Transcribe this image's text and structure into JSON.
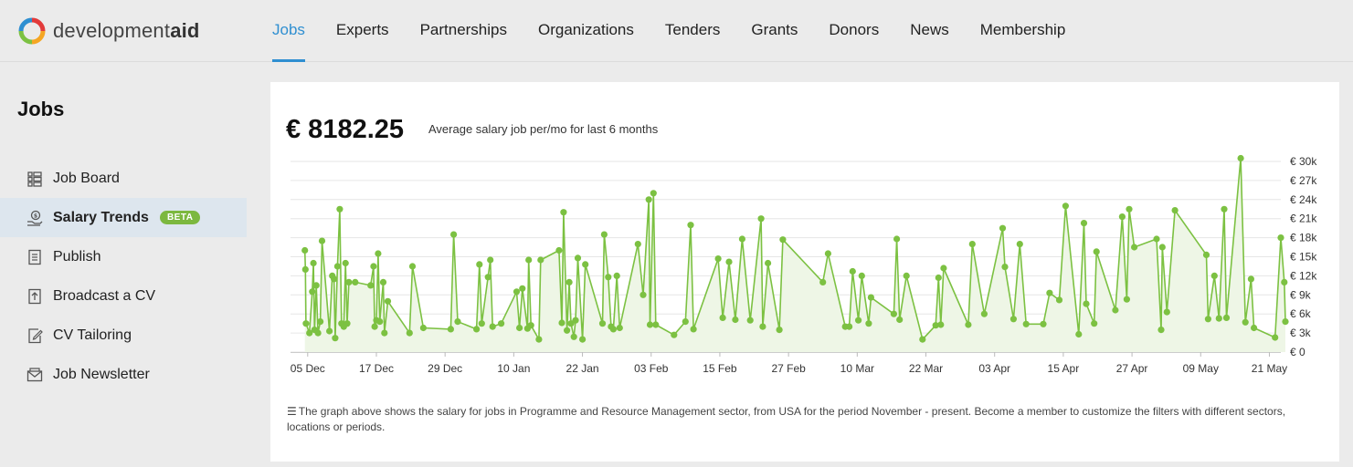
{
  "header": {
    "logo_word_light": "development",
    "logo_word_bold": "aid",
    "nav": [
      {
        "label": "Jobs",
        "active": true
      },
      {
        "label": "Experts",
        "active": false
      },
      {
        "label": "Partnerships",
        "active": false
      },
      {
        "label": "Organizations",
        "active": false
      },
      {
        "label": "Tenders",
        "active": false
      },
      {
        "label": "Grants",
        "active": false
      },
      {
        "label": "Donors",
        "active": false
      },
      {
        "label": "News",
        "active": false
      },
      {
        "label": "Membership",
        "active": false
      }
    ],
    "accent_color": "#2f8fd1"
  },
  "sidebar": {
    "title": "Jobs",
    "items": [
      {
        "label": "Job Board",
        "icon": "list-grid-icon",
        "active": false
      },
      {
        "label": "Salary Trends",
        "icon": "money-hand-icon",
        "active": true,
        "badge": "BETA"
      },
      {
        "label": "Publish",
        "icon": "document-icon",
        "active": false
      },
      {
        "label": "Broadcast a CV",
        "icon": "upload-document-icon",
        "active": false
      },
      {
        "label": "CV Tailoring",
        "icon": "edit-document-icon",
        "active": false
      },
      {
        "label": "Job Newsletter",
        "icon": "envelope-icon",
        "active": false
      }
    ]
  },
  "main": {
    "salary_value": "€ 8182.25",
    "salary_caption": "Average salary job per/mo for last 6 months",
    "note": "The graph above shows the salary for jobs in Programme and Resource Management sector, from USA for the period November - present. Become a member to customize the filters with different sectors, locations or periods."
  },
  "chart_data": {
    "type": "line",
    "line_color": "#7cc142",
    "area_fill": "#eef6e6",
    "grid": true,
    "ylim": [
      0,
      30000
    ],
    "y_ticks": [
      {
        "value": 0,
        "label": "€ 0"
      },
      {
        "value": 3000,
        "label": "€ 3k"
      },
      {
        "value": 6000,
        "label": "€ 6k"
      },
      {
        "value": 9000,
        "label": "€ 9k"
      },
      {
        "value": 12000,
        "label": "€ 12k"
      },
      {
        "value": 15000,
        "label": "€ 15k"
      },
      {
        "value": 18000,
        "label": "€ 18k"
      },
      {
        "value": 21000,
        "label": "€ 21k"
      },
      {
        "value": 24000,
        "label": "€ 24k"
      },
      {
        "value": 27000,
        "label": "€ 27k"
      },
      {
        "value": 30000,
        "label": "€ 30k"
      }
    ],
    "x_range": [
      0,
      173
    ],
    "x_ticks": [
      {
        "day": 3,
        "label": "05 Dec"
      },
      {
        "day": 15,
        "label": "17 Dec"
      },
      {
        "day": 27,
        "label": "29 Dec"
      },
      {
        "day": 39,
        "label": "10 Jan"
      },
      {
        "day": 51,
        "label": "22 Jan"
      },
      {
        "day": 63,
        "label": "03 Feb"
      },
      {
        "day": 75,
        "label": "15 Feb"
      },
      {
        "day": 87,
        "label": "27 Feb"
      },
      {
        "day": 99,
        "label": "10 Mar"
      },
      {
        "day": 111,
        "label": "22 Mar"
      },
      {
        "day": 123,
        "label": "03 Apr"
      },
      {
        "day": 135,
        "label": "15 Apr"
      },
      {
        "day": 147,
        "label": "27 Apr"
      },
      {
        "day": 159,
        "label": "09 May"
      },
      {
        "day": 171,
        "label": "21 May"
      }
    ],
    "points": [
      [
        2.5,
        16000
      ],
      [
        2.6,
        13000
      ],
      [
        2.7,
        4500
      ],
      [
        3.3,
        3000
      ],
      [
        3.8,
        9500
      ],
      [
        4.0,
        14000
      ],
      [
        4.2,
        3500
      ],
      [
        4.5,
        10500
      ],
      [
        4.8,
        3000
      ],
      [
        5.2,
        4800
      ],
      [
        5.5,
        17500
      ],
      [
        6.8,
        3300
      ],
      [
        7.3,
        12000
      ],
      [
        7.6,
        11500
      ],
      [
        7.8,
        2200
      ],
      [
        8.2,
        13500
      ],
      [
        8.6,
        22500
      ],
      [
        8.9,
        4500
      ],
      [
        9.3,
        4000
      ],
      [
        9.6,
        14000
      ],
      [
        9.9,
        4500
      ],
      [
        10.2,
        11000
      ],
      [
        11.3,
        11000
      ],
      [
        14.0,
        10500
      ],
      [
        14.5,
        13500
      ],
      [
        14.7,
        4000
      ],
      [
        15.0,
        5000
      ],
      [
        15.3,
        15500
      ],
      [
        15.6,
        4800
      ],
      [
        16.2,
        11000
      ],
      [
        16.4,
        3000
      ],
      [
        17.0,
        8000
      ],
      [
        20.8,
        3000
      ],
      [
        21.3,
        13500
      ],
      [
        23.2,
        3800
      ],
      [
        28.0,
        3600
      ],
      [
        28.5,
        18500
      ],
      [
        29.2,
        4800
      ],
      [
        32.5,
        3600
      ],
      [
        33.0,
        13800
      ],
      [
        33.4,
        4500
      ],
      [
        34.5,
        11800
      ],
      [
        34.9,
        14500
      ],
      [
        35.3,
        4000
      ],
      [
        36.8,
        4500
      ],
      [
        39.5,
        9500
      ],
      [
        40.0,
        3800
      ],
      [
        40.5,
        10000
      ],
      [
        41.4,
        3700
      ],
      [
        41.6,
        14500
      ],
      [
        42.0,
        4200
      ],
      [
        43.4,
        2000
      ],
      [
        43.7,
        14500
      ],
      [
        46.9,
        16000
      ],
      [
        47.4,
        4600
      ],
      [
        47.7,
        22000
      ],
      [
        48.3,
        3400
      ],
      [
        48.7,
        11000
      ],
      [
        49.0,
        4500
      ],
      [
        49.5,
        2400
      ],
      [
        49.8,
        5000
      ],
      [
        50.2,
        14800
      ],
      [
        51.0,
        2000
      ],
      [
        51.5,
        13800
      ],
      [
        54.5,
        4500
      ],
      [
        54.8,
        18500
      ],
      [
        55.5,
        11800
      ],
      [
        56.0,
        4000
      ],
      [
        56.4,
        3600
      ],
      [
        57.0,
        12000
      ],
      [
        57.5,
        3800
      ],
      [
        60.7,
        17000
      ],
      [
        61.6,
        9000
      ],
      [
        62.6,
        24000
      ],
      [
        62.8,
        4300
      ],
      [
        63.4,
        25000
      ],
      [
        63.8,
        4300
      ],
      [
        67.0,
        2700
      ],
      [
        69.0,
        4800
      ],
      [
        69.9,
        20000
      ],
      [
        70.4,
        3600
      ],
      [
        74.7,
        14700
      ],
      [
        75.5,
        5400
      ],
      [
        76.6,
        14200
      ],
      [
        77.7,
        5100
      ],
      [
        78.9,
        17800
      ],
      [
        80.3,
        5000
      ],
      [
        82.2,
        21000
      ],
      [
        82.5,
        4000
      ],
      [
        83.4,
        14000
      ],
      [
        85.4,
        3500
      ],
      [
        86.0,
        17700
      ],
      [
        93.0,
        11000
      ],
      [
        93.9,
        15500
      ],
      [
        96.9,
        4000
      ],
      [
        97.6,
        4000
      ],
      [
        98.2,
        12700
      ],
      [
        99.2,
        5000
      ],
      [
        99.8,
        12000
      ],
      [
        101.0,
        4500
      ],
      [
        101.4,
        8600
      ],
      [
        105.4,
        6000
      ],
      [
        105.9,
        17800
      ],
      [
        106.4,
        5100
      ],
      [
        107.6,
        12000
      ],
      [
        110.4,
        2000
      ],
      [
        112.7,
        4200
      ],
      [
        113.2,
        11700
      ],
      [
        113.6,
        4300
      ],
      [
        114.1,
        13200
      ],
      [
        118.4,
        4300
      ],
      [
        119.1,
        17000
      ],
      [
        121.2,
        6000
      ],
      [
        124.4,
        19500
      ],
      [
        124.8,
        13400
      ],
      [
        126.3,
        5200
      ],
      [
        127.4,
        17000
      ],
      [
        128.5,
        4400
      ],
      [
        131.5,
        4400
      ],
      [
        132.6,
        9300
      ],
      [
        134.3,
        8200
      ],
      [
        135.4,
        23000
      ],
      [
        137.7,
        2800
      ],
      [
        138.6,
        20300
      ],
      [
        139.0,
        7600
      ],
      [
        140.4,
        4500
      ],
      [
        140.8,
        15800
      ],
      [
        144.1,
        6600
      ],
      [
        145.3,
        21300
      ],
      [
        146.1,
        8300
      ],
      [
        146.5,
        22500
      ],
      [
        147.4,
        16500
      ],
      [
        151.3,
        17800
      ],
      [
        152.1,
        3500
      ],
      [
        152.3,
        16500
      ],
      [
        153.1,
        6300
      ],
      [
        154.5,
        22300
      ],
      [
        160.0,
        15300
      ],
      [
        160.3,
        5200
      ],
      [
        161.4,
        12000
      ],
      [
        162.2,
        5300
      ],
      [
        163.1,
        22500
      ],
      [
        163.5,
        5400
      ],
      [
        166.0,
        30500
      ],
      [
        166.8,
        4700
      ],
      [
        167.8,
        11500
      ],
      [
        168.3,
        3800
      ],
      [
        172.0,
        2300
      ],
      [
        173.0,
        18000
      ],
      [
        173.6,
        11000
      ],
      [
        173.8,
        4800
      ]
    ]
  }
}
